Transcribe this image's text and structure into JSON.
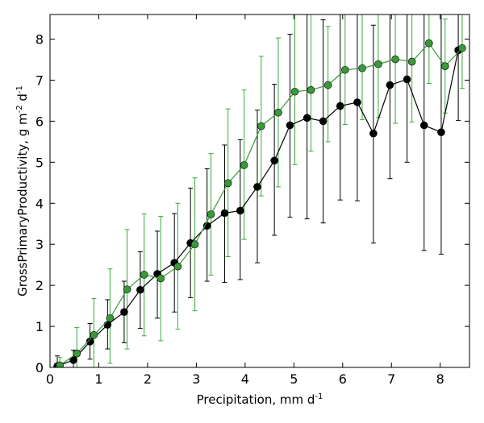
{
  "chart_data": {
    "type": "line",
    "xlabel": "Precipitation,  mm d",
    "xlabel_sup": "-1",
    "ylabel_parts": [
      "GrossPrimaryProductivity,  g m",
      "-2",
      " d",
      "-1"
    ],
    "xlim": [
      0,
      8.6
    ],
    "ylim": [
      0,
      8.6
    ],
    "xticks": [
      0,
      1,
      2,
      3,
      4,
      5,
      6,
      7,
      8
    ],
    "yticks": [
      0,
      1,
      2,
      3,
      4,
      5,
      6,
      7,
      8
    ],
    "grid": false,
    "series": [
      {
        "color": "#000000",
        "marker_color": "#000000",
        "errorbar_color": "#000000",
        "x": [
          0.15,
          0.48,
          0.82,
          1.18,
          1.52,
          1.85,
          2.2,
          2.55,
          2.88,
          3.22,
          3.58,
          3.9,
          4.25,
          4.6,
          4.92,
          5.27,
          5.6,
          5.95,
          6.3,
          6.63,
          6.97,
          7.32,
          7.67,
          8.02,
          8.37
        ],
        "y": [
          0.03,
          0.18,
          0.63,
          1.04,
          1.35,
          1.89,
          2.28,
          2.55,
          3.03,
          3.45,
          3.76,
          3.82,
          4.4,
          5.04,
          5.9,
          6.08,
          6.0,
          6.37,
          6.46,
          5.7,
          6.88,
          7.02,
          5.9,
          5.73,
          7.73
        ],
        "err_low": [
          0.0,
          0.0,
          0.2,
          0.45,
          0.6,
          0.95,
          1.2,
          1.35,
          1.7,
          2.1,
          2.07,
          2.14,
          2.55,
          3.22,
          3.66,
          3.62,
          3.52,
          4.08,
          4.06,
          3.03,
          4.6,
          5.0,
          2.85,
          2.76,
          6.02
        ],
        "err_high": [
          0.28,
          0.42,
          1.07,
          1.65,
          2.1,
          2.82,
          3.32,
          3.75,
          4.37,
          4.84,
          5.42,
          5.55,
          6.27,
          6.9,
          8.12,
          8.6,
          8.47,
          8.6,
          8.6,
          8.34,
          8.6,
          8.6,
          8.6,
          8.6,
          8.6
        ]
      },
      {
        "color": "#3a9a3a",
        "marker_color": "#3a9a3a",
        "errorbar_color": "#3aaa3a",
        "x": [
          0.2,
          0.55,
          0.9,
          1.23,
          1.58,
          1.93,
          2.27,
          2.62,
          2.97,
          3.3,
          3.65,
          3.98,
          4.33,
          4.68,
          5.02,
          5.35,
          5.7,
          6.05,
          6.4,
          6.73,
          7.08,
          7.42,
          7.77,
          8.1,
          8.45
        ],
        "y": [
          0.05,
          0.34,
          0.79,
          1.2,
          1.9,
          2.26,
          2.17,
          2.46,
          3.0,
          3.73,
          4.49,
          4.93,
          5.88,
          6.21,
          6.72,
          6.76,
          6.88,
          7.25,
          7.29,
          7.39,
          7.51,
          7.45,
          7.9,
          7.34,
          7.78
        ],
        "err_low": [
          0.0,
          0.0,
          0.0,
          0.1,
          0.45,
          0.77,
          0.65,
          0.93,
          1.38,
          2.25,
          2.7,
          3.12,
          4.18,
          4.4,
          4.94,
          5.27,
          5.5,
          5.92,
          6.04,
          6.09,
          5.95,
          5.98,
          6.92,
          6.2,
          6.8
        ],
        "err_high": [
          0.24,
          0.97,
          1.68,
          2.4,
          3.36,
          3.74,
          3.68,
          4.0,
          4.62,
          5.21,
          6.3,
          6.76,
          7.58,
          8.03,
          8.6,
          8.6,
          8.31,
          8.6,
          8.6,
          8.6,
          8.6,
          8.6,
          8.6,
          8.49,
          8.6
        ]
      }
    ]
  }
}
